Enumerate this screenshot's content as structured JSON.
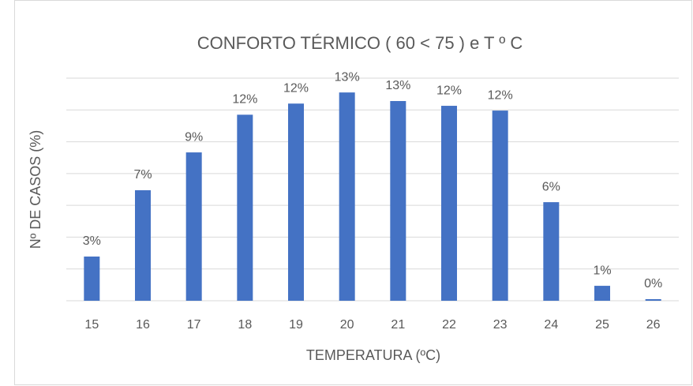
{
  "chart_data": {
    "type": "bar",
    "title": "CONFORTO TÉRMICO ( 60 < 75 ) e T º C",
    "x_label": "TEMPERATURA (ºC)",
    "y_label": "Nº DE CASOS  (%)",
    "categories": [
      "15",
      "16",
      "17",
      "18",
      "19",
      "20",
      "21",
      "22",
      "23",
      "24",
      "25",
      "26"
    ],
    "values": [
      2.78,
      6.95,
      9.33,
      11.7,
      12.4,
      13.1,
      12.56,
      12.26,
      11.96,
      6.2,
      0.94,
      0.1
    ],
    "value_labels": [
      "3%",
      "7%",
      "9%",
      "12%",
      "12%",
      "13%",
      "13%",
      "12%",
      "12%",
      "6%",
      "1%",
      "0%"
    ],
    "color": "#4472c4",
    "ylim": [
      0,
      14
    ],
    "yticks": [
      0,
      2,
      4,
      6,
      8,
      10,
      12,
      14
    ],
    "grid": true
  }
}
